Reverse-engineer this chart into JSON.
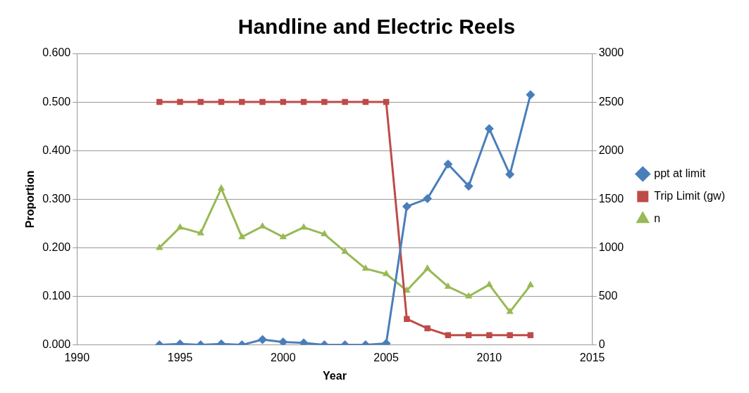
{
  "chart_data": {
    "type": "line",
    "title": "Handline and Electric Reels",
    "xlabel": "Year",
    "ylabel": "Proportion",
    "x": [
      1994,
      1995,
      1996,
      1997,
      1998,
      1999,
      2000,
      2001,
      2002,
      2003,
      2004,
      2005,
      2006,
      2007,
      2008,
      2009,
      2010,
      2011,
      2012
    ],
    "series": [
      {
        "name": "ppt at limit",
        "color": "#4a7ebb",
        "marker": "diamond",
        "values": [
          0,
          0.002,
          0,
          0.002,
          0,
          0.011,
          0.006,
          0.004,
          0,
          0,
          0,
          0.003,
          0.285,
          0.301,
          0.372,
          0.327,
          0.445,
          0.351,
          0.515
        ]
      },
      {
        "name": "Trip Limit (gw)",
        "color": "#be4b48",
        "marker": "square",
        "axis": "y2",
        "values": [
          2500,
          2500,
          2500,
          2500,
          2500,
          2500,
          2500,
          2500,
          2500,
          2500,
          2500,
          2500,
          267,
          170,
          100,
          100,
          100,
          100,
          100
        ]
      },
      {
        "name": "n",
        "color": "#98b954",
        "marker": "triangle",
        "axis": "y2",
        "values": [
          1000,
          1210,
          1150,
          1610,
          1110,
          1220,
          1110,
          1210,
          1140,
          960,
          785,
          730,
          560,
          785,
          600,
          500,
          620,
          340,
          615
        ]
      }
    ],
    "xlim": [
      1990,
      2015
    ],
    "xticks": [
      1990,
      1995,
      2000,
      2005,
      2010,
      2015
    ],
    "ylim": [
      0,
      0.6
    ],
    "yticks": [
      {
        "value": 0,
        "label": "0.000"
      },
      {
        "value": 0.1,
        "label": "0.100"
      },
      {
        "value": 0.2,
        "label": "0.200"
      },
      {
        "value": 0.3,
        "label": "0.300"
      },
      {
        "value": 0.4,
        "label": "0.400"
      },
      {
        "value": 0.5,
        "label": "0.500"
      },
      {
        "value": 0.6,
        "label": "0.600"
      }
    ],
    "y2lim": [
      0,
      3000
    ],
    "y2ticks": [
      0,
      500,
      1000,
      1500,
      2000,
      2500,
      3000
    ],
    "grid": "y",
    "legend": "right",
    "line_style": "solid"
  }
}
